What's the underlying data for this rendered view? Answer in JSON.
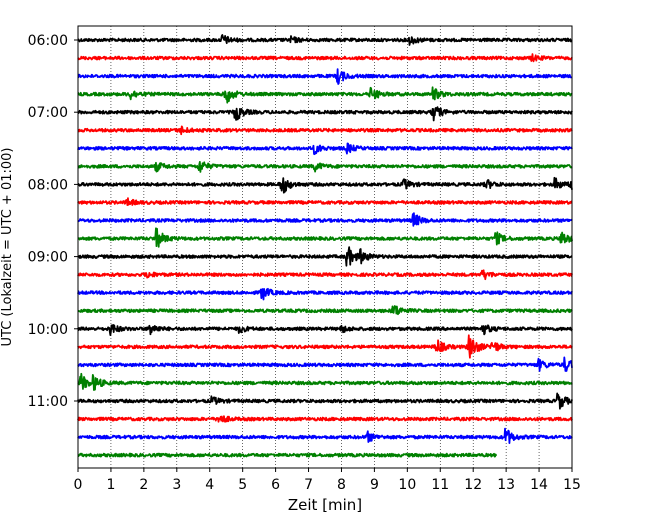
{
  "chart_data": {
    "type": "line",
    "title": "",
    "xlabel": "Zeit  [min]",
    "ylabel": "UTC (Lokalzeit = UTC + 01:00)",
    "xlim": [
      0,
      15
    ],
    "xticks": [
      0,
      1,
      2,
      3,
      4,
      5,
      6,
      7,
      8,
      9,
      10,
      11,
      12,
      13,
      14,
      15
    ],
    "grid": "vertical dotted",
    "ytick_labels": [
      "06:00",
      "07:00",
      "08:00",
      "09:00",
      "10:00",
      "11:00"
    ],
    "color_cycle": [
      "#000000",
      "#ff0000",
      "#0000ff",
      "#008000"
    ],
    "traces": [
      {
        "start": "06:00",
        "color": "#000000",
        "end_min": 15,
        "events": [
          [
            4.4,
            0.35
          ],
          [
            6.5,
            0.2
          ],
          [
            10.1,
            0.3
          ]
        ]
      },
      {
        "start": "06:15",
        "color": "#ff0000",
        "end_min": 15,
        "events": [
          [
            13.8,
            0.2
          ]
        ]
      },
      {
        "start": "06:30",
        "color": "#0000ff",
        "end_min": 15,
        "events": [
          [
            7.9,
            0.55
          ]
        ]
      },
      {
        "start": "06:45",
        "color": "#008000",
        "end_min": 15,
        "events": [
          [
            1.6,
            0.35
          ],
          [
            4.5,
            0.7
          ],
          [
            8.9,
            0.5
          ],
          [
            10.8,
            0.45
          ]
        ]
      },
      {
        "start": "07:00",
        "color": "#000000",
        "end_min": 15,
        "events": [
          [
            4.8,
            0.6
          ],
          [
            10.8,
            0.6
          ]
        ]
      },
      {
        "start": "07:15",
        "color": "#ff0000",
        "end_min": 15,
        "events": [
          [
            3.1,
            0.3
          ]
        ]
      },
      {
        "start": "07:30",
        "color": "#0000ff",
        "end_min": 15,
        "events": [
          [
            7.2,
            0.35
          ],
          [
            8.2,
            0.3
          ]
        ]
      },
      {
        "start": "07:45",
        "color": "#008000",
        "end_min": 15,
        "events": [
          [
            2.4,
            0.3
          ],
          [
            3.7,
            0.45
          ],
          [
            7.2,
            0.3
          ]
        ]
      },
      {
        "start": "08:00",
        "color": "#000000",
        "end_min": 15,
        "events": [
          [
            6.2,
            0.75
          ],
          [
            9.9,
            0.35
          ],
          [
            12.4,
            0.35
          ],
          [
            14.5,
            0.4
          ],
          [
            15,
            0.4
          ]
        ]
      },
      {
        "start": "08:15",
        "color": "#ff0000",
        "end_min": 15,
        "events": [
          [
            1.5,
            0.25
          ]
        ]
      },
      {
        "start": "08:30",
        "color": "#0000ff",
        "end_min": 15,
        "events": [
          [
            10.2,
            0.5
          ]
        ]
      },
      {
        "start": "08:45",
        "color": "#008000",
        "end_min": 15,
        "events": [
          [
            2.4,
            0.7
          ],
          [
            12.7,
            0.45
          ],
          [
            14.7,
            0.5
          ]
        ]
      },
      {
        "start": "09:00",
        "color": "#000000",
        "end_min": 15,
        "events": [
          [
            8.2,
            0.75
          ],
          [
            8.6,
            0.4
          ]
        ]
      },
      {
        "start": "09:15",
        "color": "#ff0000",
        "end_min": 15,
        "events": [
          [
            2.1,
            0.2
          ],
          [
            12.3,
            0.35
          ]
        ]
      },
      {
        "start": "09:30",
        "color": "#0000ff",
        "end_min": 15,
        "events": [
          [
            5.6,
            0.5
          ]
        ]
      },
      {
        "start": "09:45",
        "color": "#008000",
        "end_min": 15,
        "events": [
          [
            9.6,
            0.45
          ]
        ]
      },
      {
        "start": "10:00",
        "color": "#000000",
        "end_min": 15,
        "events": [
          [
            1.0,
            0.4
          ],
          [
            2.2,
            0.4
          ],
          [
            4.9,
            0.25
          ],
          [
            8.0,
            0.25
          ],
          [
            12.3,
            0.4
          ]
        ]
      },
      {
        "start": "10:15",
        "color": "#ff0000",
        "end_min": 15,
        "events": [
          [
            10.9,
            0.55
          ],
          [
            11.9,
            1.0
          ],
          [
            12.6,
            0.4
          ]
        ]
      },
      {
        "start": "10:30",
        "color": "#0000ff",
        "end_min": 15,
        "events": [
          [
            14.0,
            0.4
          ],
          [
            14.8,
            0.5
          ]
        ]
      },
      {
        "start": "10:45",
        "color": "#008000",
        "end_min": 15,
        "events": [
          [
            0.1,
            0.6
          ],
          [
            0.5,
            0.45
          ]
        ]
      },
      {
        "start": "11:00",
        "color": "#000000",
        "end_min": 15,
        "events": [
          [
            4.1,
            0.25
          ],
          [
            14.6,
            0.6
          ]
        ]
      },
      {
        "start": "11:15",
        "color": "#ff0000",
        "end_min": 15,
        "events": [
          [
            4.3,
            0.35
          ]
        ]
      },
      {
        "start": "11:30",
        "color": "#0000ff",
        "end_min": 15,
        "events": [
          [
            8.8,
            0.35
          ],
          [
            13.0,
            0.65
          ]
        ]
      },
      {
        "start": "11:45",
        "color": "#008000",
        "end_min": 12.7,
        "events": []
      }
    ]
  }
}
